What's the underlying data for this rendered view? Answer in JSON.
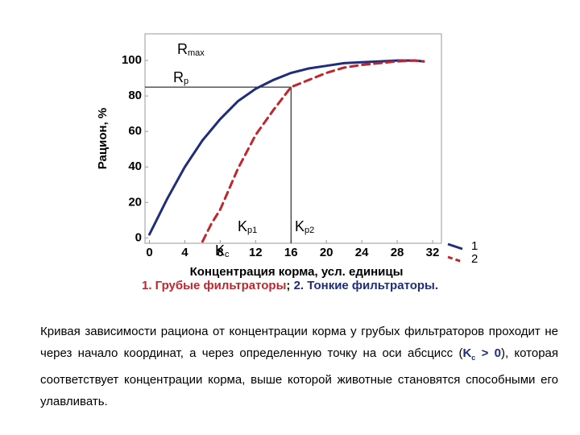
{
  "chart_data": {
    "type": "line",
    "x_label": "Концентрация корма, усл. единицы",
    "y_label": "Рацион, %",
    "x": [
      0,
      2,
      4,
      6,
      7,
      8,
      10,
      12,
      14,
      16,
      18,
      20,
      22,
      24,
      26,
      28,
      30,
      31
    ],
    "series": [
      {
        "name": "1",
        "color": "#1f2d7a",
        "dashed": false,
        "values": [
          2,
          22,
          40,
          55,
          61,
          67,
          77,
          84,
          89,
          93,
          95.5,
          97,
          98.5,
          99,
          99.5,
          100,
          100,
          99.5
        ]
      },
      {
        "name": "2",
        "color": "#c0272d",
        "dashed": true,
        "values": [
          null,
          null,
          null,
          -2,
          8,
          16,
          39,
          58,
          72,
          85,
          89,
          93,
          96,
          97.5,
          98.5,
          99.5,
          100,
          99.5
        ]
      }
    ],
    "xlim": [
      -0.5,
      33
    ],
    "ylim": [
      -3,
      115
    ],
    "xticks": [
      0,
      4,
      8,
      12,
      16,
      20,
      24,
      28,
      32
    ],
    "yticks": [
      0,
      20,
      40,
      60,
      80,
      100
    ],
    "reference_lines": {
      "y": 85,
      "x": 16
    },
    "annotations": [
      {
        "text": "R",
        "sub": "max"
      },
      {
        "text": "R",
        "sub": "p"
      },
      {
        "text": "K",
        "sub": "p1"
      },
      {
        "text": "K",
        "sub": "p2"
      },
      {
        "text": "K",
        "sub": "c"
      }
    ]
  },
  "caption": {
    "part1": "1. Грубые  фильтраторы",
    "sep": "; ",
    "part2": "2. Тонкие фильтраторы."
  },
  "paragraph": {
    "before": "Кривая зависимости рациона от концентрации корма у грубых фильтраторов проходит не через начало координат, а через определенную точку на оси абсцисс (",
    "k": "K",
    "k_sub": "c",
    "cond": " > 0",
    "after": "), которая соответствует концентрации корма, выше которой животные становятся способными его улавливать."
  }
}
